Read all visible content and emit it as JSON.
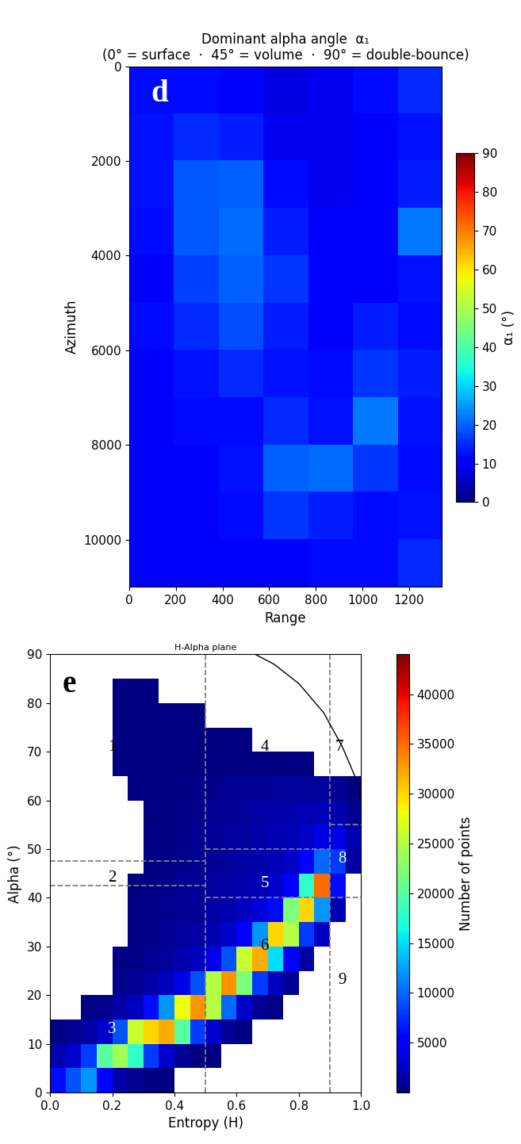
{
  "chart_data": [
    {
      "type": "heatmap",
      "panel": "d",
      "title": "Dominant alpha angle  α₁\n(0° = surface  ·  45° = volume  ·  90° = double-bounce)",
      "x_label": "Range",
      "y_label": "Azimuth",
      "xlim": [
        0,
        1340
      ],
      "ylim": [
        11000,
        0
      ],
      "xticks": [
        0,
        200,
        400,
        600,
        800,
        1000,
        1200
      ],
      "yticks": [
        0,
        2000,
        4000,
        6000,
        8000,
        10000
      ],
      "cells": [
        [
          12,
          12,
          10,
          8,
          9,
          12,
          15
        ],
        [
          13,
          15,
          14,
          9,
          9,
          10,
          13
        ],
        [
          13,
          19,
          20,
          12,
          9,
          10,
          14
        ],
        [
          12,
          19,
          21,
          14,
          10,
          11,
          22
        ],
        [
          11,
          17,
          20,
          16,
          10,
          11,
          13
        ],
        [
          12,
          15,
          18,
          14,
          11,
          14,
          12
        ],
        [
          11,
          13,
          15,
          13,
          12,
          16,
          14
        ],
        [
          11,
          12,
          12,
          15,
          13,
          22,
          13
        ],
        [
          10,
          11,
          13,
          20,
          21,
          16,
          12
        ],
        [
          10,
          10,
          12,
          16,
          14,
          12,
          13
        ],
        [
          10,
          10,
          11,
          11,
          12,
          12,
          15
        ]
      ],
      "colorbar_label": "α₁ (°)",
      "colorbar_range": [
        0,
        90
      ],
      "colorbar_ticks": [
        0,
        10,
        20,
        30,
        40,
        50,
        60,
        70,
        80,
        90
      ]
    },
    {
      "type": "histogram2d",
      "panel": "e",
      "title": "H-Alpha plane",
      "x_label": "Entropy (H)",
      "y_label": "Alpha (°)",
      "xlim": [
        0.0,
        1.0
      ],
      "ylim": [
        0,
        90
      ],
      "xticks": [
        0.0,
        0.2,
        0.4,
        0.6,
        0.8,
        1.0
      ],
      "yticks": [
        0,
        10,
        20,
        30,
        40,
        50,
        60,
        70,
        80,
        90
      ],
      "x_bins": [
        0.0,
        0.05,
        0.1,
        0.15,
        0.2,
        0.25,
        0.3,
        0.35,
        0.4,
        0.45,
        0.5,
        0.55,
        0.6,
        0.65,
        0.7,
        0.75,
        0.8,
        0.85,
        0.9,
        0.95,
        1.0
      ],
      "y_bins": [
        0,
        5,
        10,
        15,
        20,
        25,
        30,
        35,
        40,
        45,
        50,
        55,
        60,
        65,
        70,
        75,
        80,
        85,
        90
      ],
      "cells": [
        [
          6000,
          9000,
          12000,
          5000,
          1500,
          600,
          200,
          50,
          0,
          0,
          0,
          0,
          0,
          0,
          0,
          0,
          0,
          0,
          0,
          0
        ],
        [
          2000,
          3000,
          8000,
          20000,
          24000,
          18000,
          8000,
          3000,
          1000,
          300,
          100,
          0,
          0,
          0,
          0,
          0,
          0,
          0,
          0,
          0
        ],
        [
          500,
          800,
          1500,
          3000,
          9000,
          26000,
          30000,
          32000,
          20000,
          8000,
          3000,
          800,
          200,
          0,
          0,
          0,
          0,
          0,
          0,
          0
        ],
        [
          0,
          0,
          200,
          600,
          1500,
          2500,
          6000,
          12000,
          28000,
          33000,
          25000,
          10000,
          3000,
          800,
          200,
          0,
          0,
          0,
          0,
          0
        ],
        [
          0,
          0,
          0,
          0,
          600,
          1000,
          1500,
          2500,
          4000,
          9000,
          25000,
          33000,
          22000,
          8000,
          2500,
          800,
          0,
          0,
          0,
          0
        ],
        [
          0,
          0,
          0,
          0,
          200,
          500,
          800,
          1200,
          1800,
          2500,
          4000,
          9000,
          26000,
          32000,
          15000,
          5000,
          1500,
          0,
          0,
          0
        ],
        [
          0,
          0,
          0,
          0,
          0,
          300,
          500,
          800,
          1100,
          1500,
          2000,
          3000,
          5000,
          12000,
          30000,
          25000,
          8000,
          2500,
          0,
          0
        ],
        [
          0,
          0,
          0,
          0,
          0,
          200,
          400,
          600,
          800,
          1000,
          1400,
          1800,
          2500,
          3500,
          6000,
          22000,
          30000,
          12000,
          2000,
          0
        ],
        [
          0,
          0,
          0,
          0,
          0,
          100,
          300,
          500,
          700,
          900,
          1100,
          1400,
          1800,
          2200,
          3000,
          5000,
          18000,
          35000,
          6000,
          0
        ],
        [
          0,
          0,
          0,
          0,
          0,
          0,
          200,
          400,
          600,
          800,
          1000,
          1200,
          1500,
          1800,
          2200,
          2800,
          5000,
          10000,
          8000,
          1500
        ],
        [
          0,
          0,
          0,
          0,
          0,
          0,
          200,
          300,
          500,
          700,
          900,
          1100,
          1300,
          1600,
          1900,
          2200,
          2800,
          4000,
          4000,
          2000
        ],
        [
          0,
          0,
          0,
          0,
          0,
          0,
          150,
          250,
          400,
          600,
          800,
          1000,
          1200,
          1400,
          1600,
          1800,
          2000,
          2200,
          1800,
          800
        ],
        [
          0,
          0,
          0,
          0,
          0,
          100,
          100,
          150,
          300,
          400,
          500,
          700,
          900,
          1000,
          1100,
          1200,
          1200,
          1200,
          800,
          200
        ],
        [
          0,
          0,
          0,
          0,
          100,
          100,
          100,
          100,
          100,
          100,
          100,
          100,
          100,
          100,
          100,
          100,
          50,
          0,
          0,
          0
        ],
        [
          0,
          0,
          0,
          0,
          100,
          100,
          100,
          100,
          100,
          100,
          100,
          100,
          100,
          0,
          0,
          0,
          0,
          0,
          0,
          0
        ],
        [
          0,
          0,
          0,
          0,
          100,
          100,
          100,
          100,
          100,
          100,
          0,
          0,
          0,
          0,
          0,
          0,
          0,
          0,
          0,
          0
        ],
        [
          0,
          0,
          0,
          0,
          100,
          100,
          100,
          0,
          0,
          0,
          0,
          0,
          0,
          0,
          0,
          0,
          0,
          0,
          0,
          0
        ],
        [
          0,
          0,
          0,
          0,
          0,
          0,
          0,
          0,
          0,
          0,
          0,
          0,
          0,
          0,
          0,
          0,
          0,
          0,
          0,
          0
        ]
      ],
      "zone_lines": [
        {
          "x": [
            0.5,
            0.5
          ],
          "y": [
            0,
            90
          ]
        },
        {
          "x": [
            0.9,
            0.9
          ],
          "y": [
            0,
            90
          ]
        },
        {
          "x": [
            0.0,
            0.5
          ],
          "y": [
            47.5,
            47.5
          ]
        },
        {
          "x": [
            0.0,
            0.5
          ],
          "y": [
            42.5,
            42.5
          ]
        },
        {
          "x": [
            0.5,
            0.9
          ],
          "y": [
            50,
            50
          ]
        },
        {
          "x": [
            0.5,
            0.9
          ],
          "y": [
            40,
            40
          ]
        },
        {
          "x": [
            0.9,
            1.0
          ],
          "y": [
            55,
            55
          ]
        },
        {
          "x": [
            0.9,
            1.0
          ],
          "y": [
            40,
            40
          ]
        }
      ],
      "line_style": "dashed",
      "feasible_boundary": {
        "x": [
          0.66,
          0.72,
          0.8,
          0.88,
          0.94,
          0.98,
          1.0
        ],
        "y": [
          90,
          88,
          84,
          78,
          71,
          65,
          60
        ]
      },
      "zone_labels": [
        "1",
        "2",
        "3",
        "4",
        "5",
        "6",
        "7",
        "8",
        "9"
      ],
      "colorbar_label": "Number of points",
      "colorbar_range": [
        0,
        44000
      ],
      "colorbar_ticks": [
        5000,
        10000,
        15000,
        20000,
        25000,
        30000,
        35000,
        40000
      ]
    }
  ]
}
